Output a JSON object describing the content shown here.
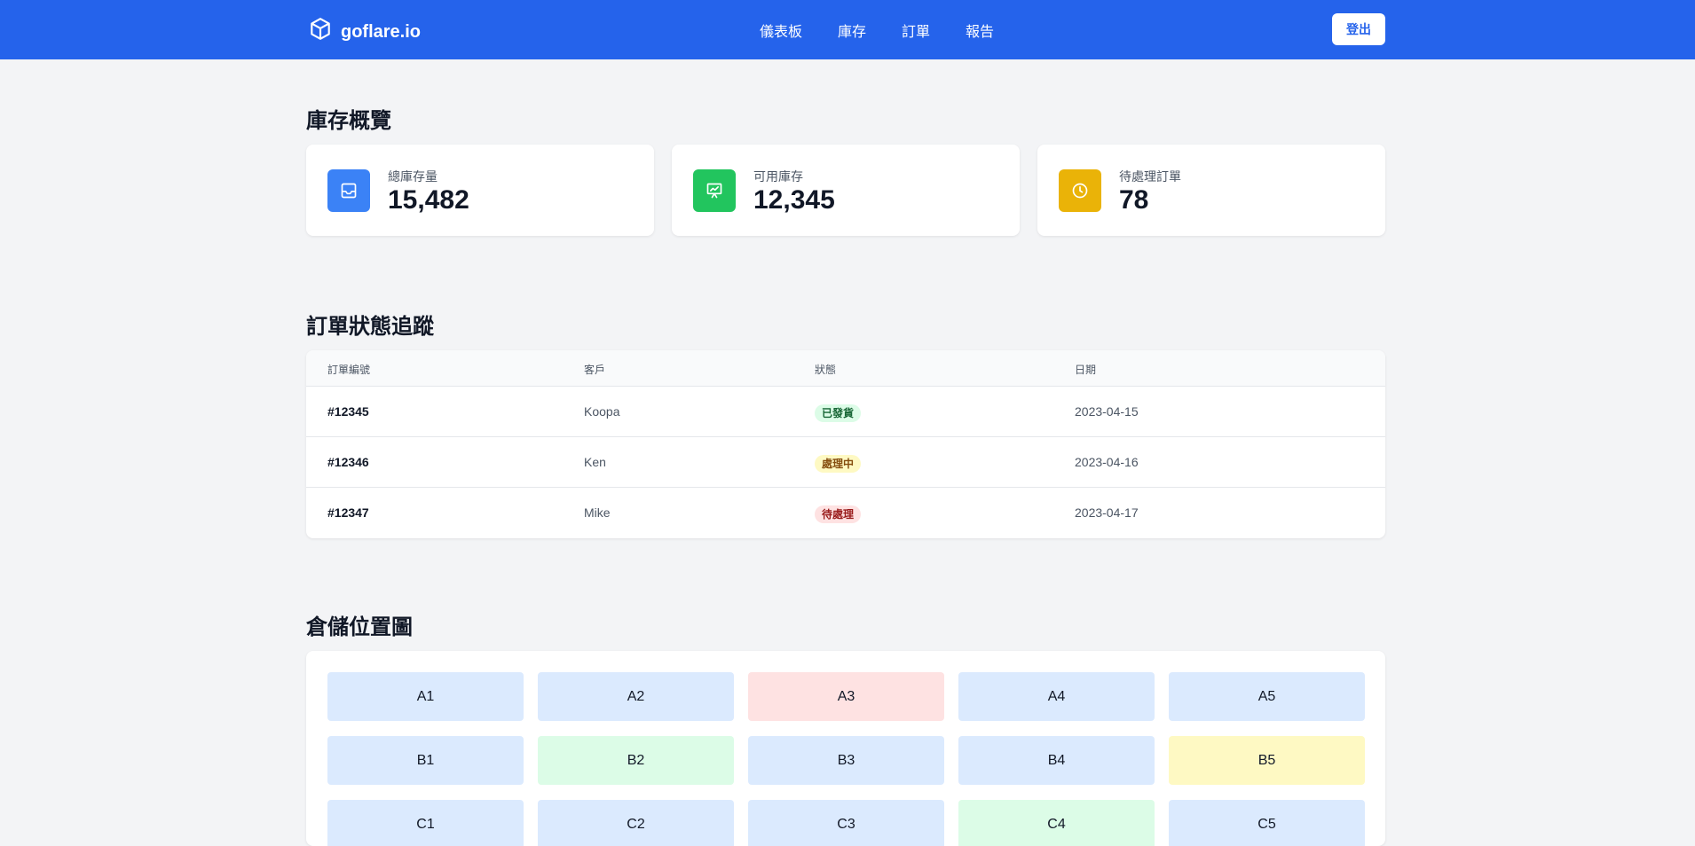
{
  "header": {
    "logo_text": "goflare.io",
    "nav": [
      "儀表板",
      "庫存",
      "訂單",
      "報告"
    ],
    "logout_label": "登出",
    "bg_color": "#2563eb"
  },
  "inventory": {
    "title": "庫存概覽",
    "cards": [
      {
        "label": "總庫存量",
        "value": "15,482",
        "icon": "inbox-icon",
        "color": "#3b82f6"
      },
      {
        "label": "可用庫存",
        "value": "12,345",
        "icon": "chart-presentation-icon",
        "color": "#22c55e"
      },
      {
        "label": "待處理訂單",
        "value": "78",
        "icon": "clock-icon",
        "color": "#eab308"
      }
    ]
  },
  "orders": {
    "title": "訂單狀態追蹤",
    "headers": [
      "訂單編號",
      "客戶",
      "狀態",
      "日期"
    ],
    "rows": [
      {
        "id": "#12345",
        "customer": "Koopa",
        "status": "已發貨",
        "status_type": "shipped",
        "date": "2023-04-15"
      },
      {
        "id": "#12346",
        "customer": "Ken",
        "status": "處理中",
        "status_type": "processing",
        "date": "2023-04-16"
      },
      {
        "id": "#12347",
        "customer": "Mike",
        "status": "待處理",
        "status_type": "pending",
        "date": "2023-04-17"
      }
    ],
    "status_colors": {
      "shipped": {
        "bg": "#dcfce7",
        "fg": "#166534"
      },
      "processing": {
        "bg": "#fef9c3",
        "fg": "#854d0e"
      },
      "pending": {
        "bg": "#fee2e2",
        "fg": "#991b1b"
      }
    }
  },
  "warehouse": {
    "title": "倉儲位置圖",
    "cells": [
      {
        "label": "A1",
        "status": "normal"
      },
      {
        "label": "A2",
        "status": "normal"
      },
      {
        "label": "A3",
        "status": "alert"
      },
      {
        "label": "A4",
        "status": "normal"
      },
      {
        "label": "A5",
        "status": "normal"
      },
      {
        "label": "B1",
        "status": "normal"
      },
      {
        "label": "B2",
        "status": "ok"
      },
      {
        "label": "B3",
        "status": "normal"
      },
      {
        "label": "B4",
        "status": "normal"
      },
      {
        "label": "B5",
        "status": "warn"
      },
      {
        "label": "C1",
        "status": "normal"
      },
      {
        "label": "C2",
        "status": "normal"
      },
      {
        "label": "C3",
        "status": "normal"
      },
      {
        "label": "C4",
        "status": "ok"
      },
      {
        "label": "C5",
        "status": "normal"
      }
    ],
    "cell_colors": {
      "normal": "#dbeafe",
      "alert": "#fee2e2",
      "ok": "#dcfce7",
      "warn": "#fef9c3"
    }
  }
}
